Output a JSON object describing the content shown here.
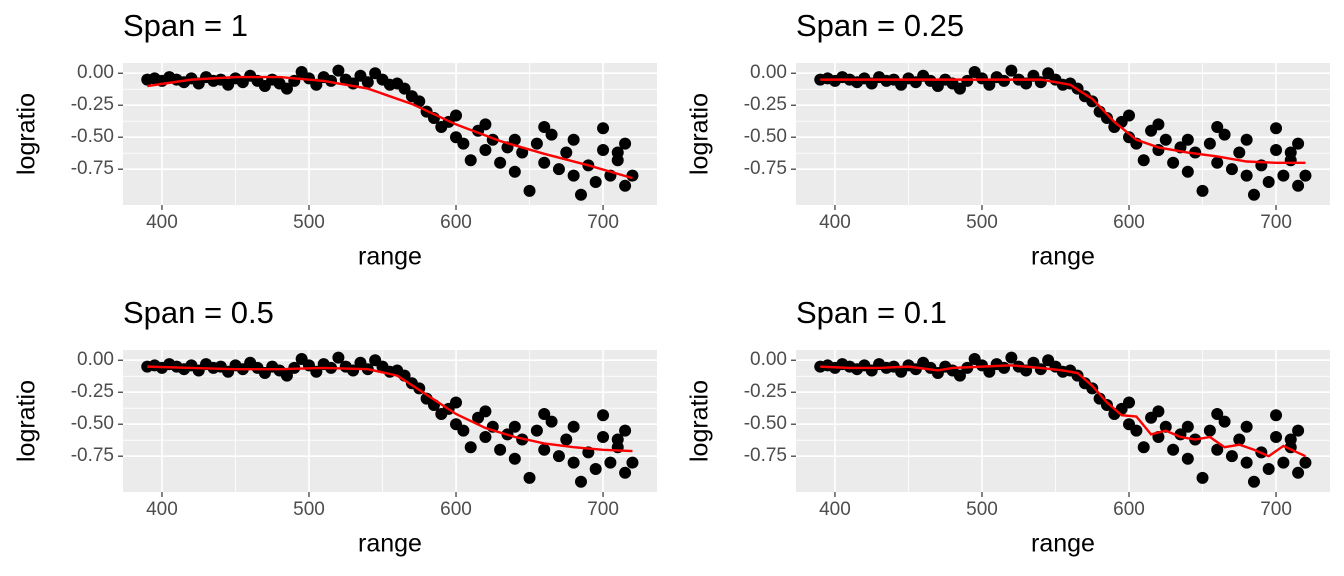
{
  "chart_data": [
    {
      "type": "scatter",
      "title": "Span = 1",
      "x_label": "range",
      "y_label": "logratio",
      "xlim": [
        373.5,
        736.7
      ],
      "ylim": [
        -1.03,
        0.08
      ],
      "xticks": [
        400,
        500,
        600,
        700
      ],
      "yticks": [
        {
          "value": 0,
          "label": "0.00"
        },
        {
          "value": -0.25,
          "label": "-0.25"
        },
        {
          "value": -0.5,
          "label": "-0.50"
        },
        {
          "value": -0.75,
          "label": "-0.75"
        }
      ],
      "grid": true,
      "points": {
        "color": "#000000",
        "x": [
          390,
          395,
          400,
          405,
          410,
          415,
          420,
          425,
          430,
          435,
          440,
          445,
          450,
          455,
          460,
          465,
          470,
          475,
          480,
          485,
          490,
          495,
          500,
          505,
          510,
          515,
          520,
          525,
          530,
          535,
          540,
          545,
          550,
          555,
          560,
          565,
          570,
          575,
          580,
          585,
          590,
          595,
          600,
          605,
          610,
          615,
          620,
          625,
          630,
          635,
          640,
          645,
          650,
          655,
          660,
          665,
          670,
          675,
          680,
          685,
          690,
          695,
          700,
          705,
          710,
          715,
          720,
          600,
          620,
          640,
          660,
          680,
          700,
          715,
          710
        ],
        "values": [
          -0.05,
          -0.04,
          -0.06,
          -0.03,
          -0.05,
          -0.07,
          -0.04,
          -0.08,
          -0.03,
          -0.06,
          -0.05,
          -0.09,
          -0.04,
          -0.07,
          -0.02,
          -0.06,
          -0.1,
          -0.05,
          -0.08,
          -0.12,
          -0.06,
          0.01,
          -0.04,
          -0.09,
          -0.03,
          -0.06,
          0.02,
          -0.05,
          -0.08,
          -0.02,
          -0.07,
          0,
          -0.05,
          -0.09,
          -0.08,
          -0.12,
          -0.18,
          -0.22,
          -0.3,
          -0.35,
          -0.42,
          -0.38,
          -0.5,
          -0.55,
          -0.68,
          -0.45,
          -0.6,
          -0.52,
          -0.7,
          -0.58,
          -0.77,
          -0.62,
          -0.92,
          -0.55,
          -0.7,
          -0.48,
          -0.75,
          -0.62,
          -0.8,
          -0.95,
          -0.72,
          -0.85,
          -0.6,
          -0.8,
          -0.68,
          -0.88,
          -0.8,
          -0.33,
          -0.4,
          -0.52,
          -0.42,
          -0.52,
          -0.43,
          -0.55,
          -0.62
        ]
      },
      "smooth": {
        "color": "#ff0000",
        "x": [
          390,
          420,
          450,
          480,
          510,
          540,
          570,
          600,
          630,
          660,
          690,
          720
        ],
        "values": [
          -0.1,
          -0.05,
          -0.03,
          -0.03,
          -0.06,
          -0.12,
          -0.24,
          -0.4,
          -0.53,
          -0.63,
          -0.72,
          -0.82
        ]
      }
    },
    {
      "type": "scatter",
      "title": "Span = 0.25",
      "x_label": "range",
      "y_label": "logratio",
      "xlim": [
        373.5,
        736.7
      ],
      "ylim": [
        -1.03,
        0.08
      ],
      "xticks": [
        400,
        500,
        600,
        700
      ],
      "yticks": [
        {
          "value": 0,
          "label": "0.00"
        },
        {
          "value": -0.25,
          "label": "-0.25"
        },
        {
          "value": -0.5,
          "label": "-0.50"
        },
        {
          "value": -0.75,
          "label": "-0.75"
        }
      ],
      "grid": true,
      "points": {
        "color": "#000000",
        "x": [
          390,
          395,
          400,
          405,
          410,
          415,
          420,
          425,
          430,
          435,
          440,
          445,
          450,
          455,
          460,
          465,
          470,
          475,
          480,
          485,
          490,
          495,
          500,
          505,
          510,
          515,
          520,
          525,
          530,
          535,
          540,
          545,
          550,
          555,
          560,
          565,
          570,
          575,
          580,
          585,
          590,
          595,
          600,
          605,
          610,
          615,
          620,
          625,
          630,
          635,
          640,
          645,
          650,
          655,
          660,
          665,
          670,
          675,
          680,
          685,
          690,
          695,
          700,
          705,
          710,
          715,
          720,
          600,
          620,
          640,
          660,
          680,
          700,
          715,
          710
        ],
        "values": [
          -0.05,
          -0.04,
          -0.06,
          -0.03,
          -0.05,
          -0.07,
          -0.04,
          -0.08,
          -0.03,
          -0.06,
          -0.05,
          -0.09,
          -0.04,
          -0.07,
          -0.02,
          -0.06,
          -0.1,
          -0.05,
          -0.08,
          -0.12,
          -0.06,
          0.01,
          -0.04,
          -0.09,
          -0.03,
          -0.06,
          0.02,
          -0.05,
          -0.08,
          -0.02,
          -0.07,
          0,
          -0.05,
          -0.09,
          -0.08,
          -0.12,
          -0.18,
          -0.22,
          -0.3,
          -0.35,
          -0.42,
          -0.38,
          -0.5,
          -0.55,
          -0.68,
          -0.45,
          -0.6,
          -0.52,
          -0.7,
          -0.58,
          -0.77,
          -0.62,
          -0.92,
          -0.55,
          -0.7,
          -0.48,
          -0.75,
          -0.62,
          -0.8,
          -0.95,
          -0.72,
          -0.85,
          -0.6,
          -0.8,
          -0.68,
          -0.88,
          -0.8,
          -0.33,
          -0.4,
          -0.52,
          -0.42,
          -0.52,
          -0.43,
          -0.55,
          -0.62
        ]
      },
      "smooth": {
        "color": "#ff0000",
        "x": [
          390,
          420,
          450,
          480,
          510,
          540,
          560,
          575,
          590,
          605,
          620,
          640,
          660,
          680,
          700,
          720
        ],
        "values": [
          -0.05,
          -0.05,
          -0.05,
          -0.05,
          -0.05,
          -0.05,
          -0.09,
          -0.2,
          -0.38,
          -0.52,
          -0.58,
          -0.62,
          -0.65,
          -0.69,
          -0.7,
          -0.7
        ]
      }
    },
    {
      "type": "scatter",
      "title": "Span = 0.5",
      "x_label": "range",
      "y_label": "logratio",
      "xlim": [
        373.5,
        736.7
      ],
      "ylim": [
        -1.03,
        0.08
      ],
      "xticks": [
        400,
        500,
        600,
        700
      ],
      "yticks": [
        {
          "value": 0,
          "label": "0.00"
        },
        {
          "value": -0.25,
          "label": "-0.25"
        },
        {
          "value": -0.5,
          "label": "-0.50"
        },
        {
          "value": -0.75,
          "label": "-0.75"
        }
      ],
      "grid": true,
      "points": {
        "color": "#000000",
        "x": [
          390,
          395,
          400,
          405,
          410,
          415,
          420,
          425,
          430,
          435,
          440,
          445,
          450,
          455,
          460,
          465,
          470,
          475,
          480,
          485,
          490,
          495,
          500,
          505,
          510,
          515,
          520,
          525,
          530,
          535,
          540,
          545,
          550,
          555,
          560,
          565,
          570,
          575,
          580,
          585,
          590,
          595,
          600,
          605,
          610,
          615,
          620,
          625,
          630,
          635,
          640,
          645,
          650,
          655,
          660,
          665,
          670,
          675,
          680,
          685,
          690,
          695,
          700,
          705,
          710,
          715,
          720,
          600,
          620,
          640,
          660,
          680,
          700,
          715,
          710
        ],
        "values": [
          -0.05,
          -0.04,
          -0.06,
          -0.03,
          -0.05,
          -0.07,
          -0.04,
          -0.08,
          -0.03,
          -0.06,
          -0.05,
          -0.09,
          -0.04,
          -0.07,
          -0.02,
          -0.06,
          -0.1,
          -0.05,
          -0.08,
          -0.12,
          -0.06,
          0.01,
          -0.04,
          -0.09,
          -0.03,
          -0.06,
          0.02,
          -0.05,
          -0.08,
          -0.02,
          -0.07,
          0,
          -0.05,
          -0.09,
          -0.08,
          -0.12,
          -0.18,
          -0.22,
          -0.3,
          -0.35,
          -0.42,
          -0.38,
          -0.5,
          -0.55,
          -0.68,
          -0.45,
          -0.6,
          -0.52,
          -0.7,
          -0.58,
          -0.77,
          -0.62,
          -0.92,
          -0.55,
          -0.7,
          -0.48,
          -0.75,
          -0.62,
          -0.8,
          -0.95,
          -0.72,
          -0.85,
          -0.6,
          -0.8,
          -0.68,
          -0.88,
          -0.8,
          -0.33,
          -0.4,
          -0.52,
          -0.42,
          -0.52,
          -0.43,
          -0.55,
          -0.62
        ]
      },
      "smooth": {
        "color": "#ff0000",
        "x": [
          390,
          420,
          450,
          480,
          510,
          540,
          560,
          580,
          600,
          620,
          640,
          660,
          680,
          700,
          720
        ],
        "values": [
          -0.05,
          -0.06,
          -0.07,
          -0.07,
          -0.06,
          -0.07,
          -0.12,
          -0.27,
          -0.42,
          -0.53,
          -0.6,
          -0.65,
          -0.68,
          -0.7,
          -0.71
        ]
      }
    },
    {
      "type": "scatter",
      "title": "Span = 0.1",
      "x_label": "range",
      "y_label": "logratio",
      "xlim": [
        373.5,
        736.7
      ],
      "ylim": [
        -1.03,
        0.08
      ],
      "xticks": [
        400,
        500,
        600,
        700
      ],
      "yticks": [
        {
          "value": 0,
          "label": "0.00"
        },
        {
          "value": -0.25,
          "label": "-0.25"
        },
        {
          "value": -0.5,
          "label": "-0.50"
        },
        {
          "value": -0.75,
          "label": "-0.75"
        }
      ],
      "grid": true,
      "points": {
        "color": "#000000",
        "x": [
          390,
          395,
          400,
          405,
          410,
          415,
          420,
          425,
          430,
          435,
          440,
          445,
          450,
          455,
          460,
          465,
          470,
          475,
          480,
          485,
          490,
          495,
          500,
          505,
          510,
          515,
          520,
          525,
          530,
          535,
          540,
          545,
          550,
          555,
          560,
          565,
          570,
          575,
          580,
          585,
          590,
          595,
          600,
          605,
          610,
          615,
          620,
          625,
          630,
          635,
          640,
          645,
          650,
          655,
          660,
          665,
          670,
          675,
          680,
          685,
          690,
          695,
          700,
          705,
          710,
          715,
          720,
          600,
          620,
          640,
          660,
          680,
          700,
          715,
          710
        ],
        "values": [
          -0.05,
          -0.04,
          -0.06,
          -0.03,
          -0.05,
          -0.07,
          -0.04,
          -0.08,
          -0.03,
          -0.06,
          -0.05,
          -0.09,
          -0.04,
          -0.07,
          -0.02,
          -0.06,
          -0.1,
          -0.05,
          -0.08,
          -0.12,
          -0.06,
          0.01,
          -0.04,
          -0.09,
          -0.03,
          -0.06,
          0.02,
          -0.05,
          -0.08,
          -0.02,
          -0.07,
          0,
          -0.05,
          -0.09,
          -0.08,
          -0.12,
          -0.18,
          -0.22,
          -0.3,
          -0.35,
          -0.42,
          -0.38,
          -0.5,
          -0.55,
          -0.68,
          -0.45,
          -0.6,
          -0.52,
          -0.7,
          -0.58,
          -0.77,
          -0.62,
          -0.92,
          -0.55,
          -0.7,
          -0.48,
          -0.75,
          -0.62,
          -0.8,
          -0.95,
          -0.72,
          -0.85,
          -0.6,
          -0.8,
          -0.68,
          -0.88,
          -0.8,
          -0.33,
          -0.4,
          -0.52,
          -0.42,
          -0.52,
          -0.43,
          -0.55,
          -0.62
        ]
      },
      "smooth": {
        "color": "#ff0000",
        "x": [
          390,
          410,
          430,
          450,
          470,
          480,
          500,
          520,
          540,
          555,
          565,
          575,
          585,
          595,
          605,
          615,
          625,
          635,
          645,
          655,
          665,
          675,
          685,
          695,
          705,
          720
        ],
        "values": [
          -0.05,
          -0.06,
          -0.06,
          -0.05,
          -0.08,
          -0.06,
          -0.05,
          -0.04,
          -0.06,
          -0.08,
          -0.1,
          -0.2,
          -0.33,
          -0.43,
          -0.44,
          -0.58,
          -0.55,
          -0.6,
          -0.62,
          -0.6,
          -0.68,
          -0.66,
          -0.7,
          -0.75,
          -0.67,
          -0.75
        ]
      }
    }
  ]
}
